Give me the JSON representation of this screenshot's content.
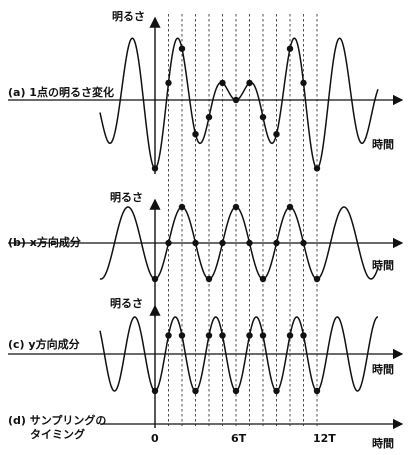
{
  "panels": [
    {
      "id": "a",
      "label": "(a) 1点の明るさ変化",
      "ylabel": "明るさ",
      "xlabel": "時間"
    },
    {
      "id": "b",
      "label": "(b) x方向成分",
      "ylabel": "明るさ",
      "xlabel": "時間"
    },
    {
      "id": "c",
      "label": "(c) y方向成分",
      "ylabel": "明るさ",
      "xlabel": "時間"
    }
  ],
  "sampling": {
    "label_line1": "(d) サンプリングの",
    "label_line2": "タイミング",
    "xlabel": "時間",
    "ticks": [
      {
        "text": "0",
        "sample": 0
      },
      {
        "text": "6T",
        "sample": 6
      },
      {
        "text": "12T",
        "sample": 12
      }
    ]
  },
  "chart_data": {
    "type": "line",
    "sample_count": 13,
    "series": [
      {
        "panel": "b",
        "samples": [
          -0.9,
          0.1,
          0.9,
          0.1,
          -0.9,
          0.1,
          0.9,
          0.1,
          -0.9,
          0.1,
          0.9,
          0.1,
          -0.9
        ]
      },
      {
        "panel": "c",
        "samples": [
          -0.9,
          -0.9,
          0.9,
          -0.9,
          -0.9,
          0.9,
          -0.9,
          -0.9,
          0.9,
          -0.9,
          -0.9,
          0.9,
          -0.9
        ]
      },
      {
        "panel": "a",
        "samples": [
          -1.8,
          -0.8,
          1.8,
          -0.8,
          -1.8,
          1.0,
          -0.8,
          -0.8,
          0.1,
          -0.8,
          -0.8,
          1.0,
          -1.8
        ]
      }
    ]
  }
}
